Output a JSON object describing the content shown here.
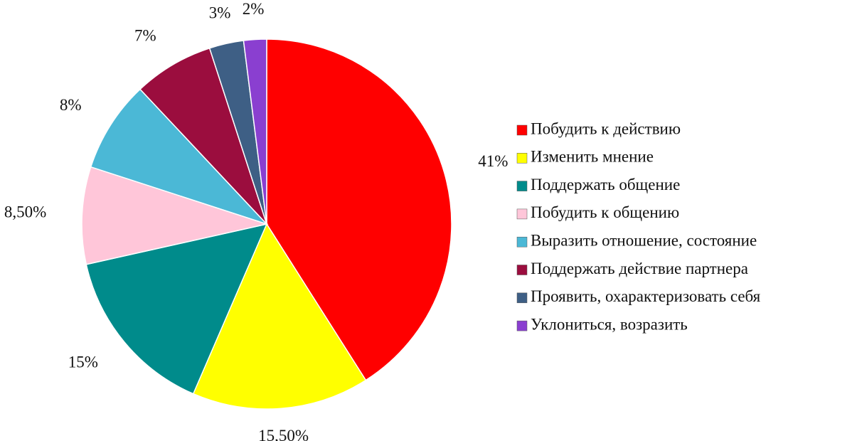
{
  "chart_data": {
    "type": "pie",
    "categories": [
      "Побудить к действию",
      "Изменить мнение",
      "Поддержать общение",
      "Побудить к общению",
      "Выразить отношение, состояние",
      "Поддержать действие партнера",
      "Проявить, охарактеризовать себя",
      "Уклониться, возразить"
    ],
    "values": [
      41,
      15.5,
      15,
      8.5,
      8,
      7,
      3,
      2
    ],
    "value_labels": [
      "41%",
      "15,50%",
      "15%",
      "8,50%",
      "8%",
      "7%",
      "3%",
      "2%"
    ],
    "colors": [
      "#ff0000",
      "#ffff00",
      "#008b8b",
      "#ffc6d9",
      "#4bb8d6",
      "#9b0d3e",
      "#3e5f85",
      "#8a3fd0"
    ],
    "legend": "right"
  }
}
